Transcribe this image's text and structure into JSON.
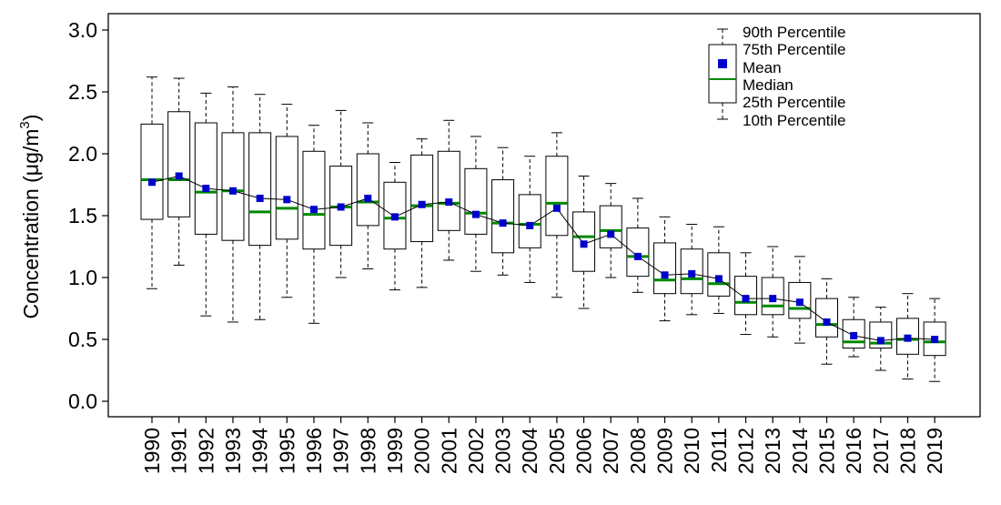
{
  "chart_data": {
    "type": "boxplot",
    "title": "",
    "xlabel": "",
    "ylabel": {
      "prefix": "Concentration (",
      "mu": "μ",
      "unit": "g/m",
      "sup": "3",
      "suffix": ")"
    },
    "ylim": [
      -0.13,
      3.13
    ],
    "yticks": [
      "0.0",
      "0.5",
      "1.0",
      "1.5",
      "2.0",
      "2.5",
      "3.0"
    ],
    "colors": {
      "mean": "#0000cc",
      "median": "#008800",
      "box": "#000000"
    },
    "legend": {
      "position": "top-right",
      "entries": {
        "p90": "90th Percentile",
        "p75": "75th Percentile",
        "mean": "Mean",
        "median": "Median",
        "p25": "25th Percentile",
        "p10": "10th Percentile"
      }
    },
    "categories": [
      "1990",
      "1991",
      "1992",
      "1993",
      "1994",
      "1995",
      "1996",
      "1997",
      "1998",
      "1999",
      "2000",
      "2001",
      "2002",
      "2003",
      "2004",
      "2005",
      "2006",
      "2007",
      "2008",
      "2009",
      "2010",
      "2011",
      "2012",
      "2013",
      "2014",
      "2015",
      "2016",
      "2017",
      "2018",
      "2019"
    ],
    "p10": [
      0.91,
      1.1,
      0.69,
      0.64,
      0.66,
      0.84,
      0.63,
      1.0,
      1.07,
      0.9,
      0.92,
      1.14,
      1.05,
      1.02,
      0.96,
      0.84,
      0.75,
      1.0,
      0.88,
      0.65,
      0.7,
      0.71,
      0.54,
      0.52,
      0.47,
      0.3,
      0.36,
      0.25,
      0.18,
      0.16
    ],
    "p25": [
      1.47,
      1.49,
      1.35,
      1.3,
      1.26,
      1.31,
      1.23,
      1.26,
      1.42,
      1.23,
      1.29,
      1.38,
      1.35,
      1.2,
      1.24,
      1.34,
      1.05,
      1.24,
      1.01,
      0.87,
      0.87,
      0.85,
      0.7,
      0.7,
      0.67,
      0.52,
      0.43,
      0.43,
      0.38,
      0.37
    ],
    "median": [
      1.79,
      1.79,
      1.69,
      1.7,
      1.53,
      1.56,
      1.51,
      1.57,
      1.61,
      1.48,
      1.58,
      1.6,
      1.52,
      1.44,
      1.43,
      1.6,
      1.33,
      1.38,
      1.17,
      0.98,
      0.99,
      0.95,
      0.8,
      0.77,
      0.75,
      0.62,
      0.48,
      0.47,
      0.5,
      0.48
    ],
    "mean": [
      1.77,
      1.82,
      1.72,
      1.7,
      1.64,
      1.63,
      1.55,
      1.57,
      1.64,
      1.49,
      1.59,
      1.61,
      1.51,
      1.44,
      1.42,
      1.56,
      1.27,
      1.35,
      1.17,
      1.02,
      1.03,
      0.99,
      0.83,
      0.83,
      0.8,
      0.64,
      0.53,
      0.49,
      0.51,
      0.5
    ],
    "p75": [
      2.24,
      2.34,
      2.25,
      2.17,
      2.17,
      2.14,
      2.02,
      1.9,
      2.0,
      1.77,
      1.99,
      2.02,
      1.88,
      1.79,
      1.67,
      1.98,
      1.53,
      1.58,
      1.4,
      1.28,
      1.23,
      1.2,
      1.01,
      1.0,
      0.96,
      0.83,
      0.66,
      0.64,
      0.67,
      0.64
    ],
    "p90": [
      2.62,
      2.61,
      2.49,
      2.54,
      2.48,
      2.4,
      2.23,
      2.35,
      2.25,
      1.93,
      2.12,
      2.27,
      2.14,
      2.05,
      1.98,
      2.17,
      1.82,
      1.76,
      1.64,
      1.49,
      1.43,
      1.41,
      1.2,
      1.25,
      1.17,
      0.99,
      0.84,
      0.76,
      0.87,
      0.83
    ]
  }
}
